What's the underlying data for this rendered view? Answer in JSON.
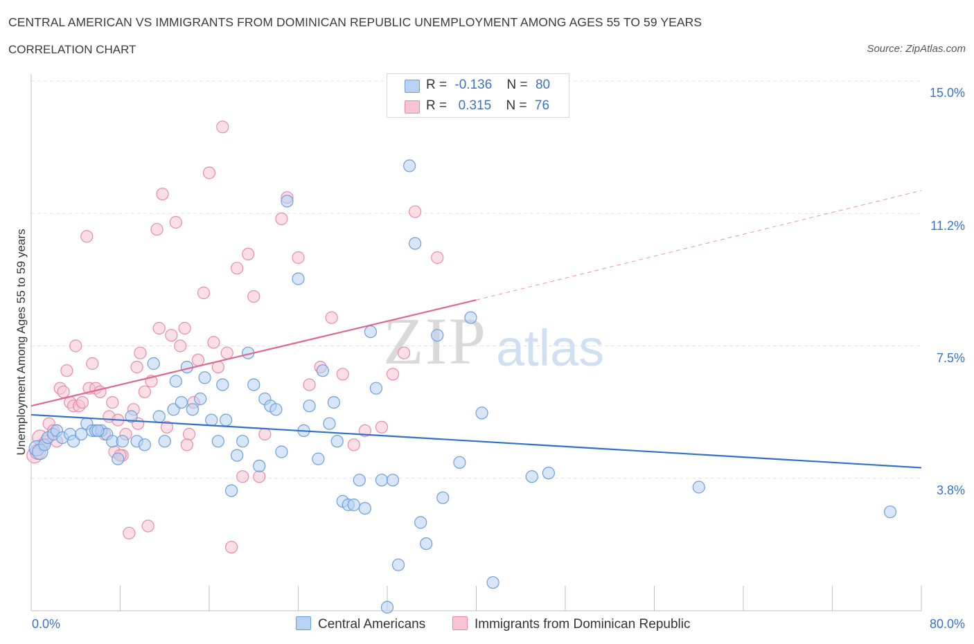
{
  "header": {
    "title": "CENTRAL AMERICAN VS IMMIGRANTS FROM DOMINICAN REPUBLIC UNEMPLOYMENT AMONG AGES 55 TO 59 YEARS",
    "subtitle": "CORRELATION CHART",
    "source": "Source: ZipAtlas.com"
  },
  "legend": {
    "r_label": "R =",
    "n_label": "N =",
    "rows": [
      {
        "r": "-0.136",
        "n": "80",
        "color": "#a8c8f0"
      },
      {
        "r": " 0.315",
        "n": "76",
        "color": "#f5b8cb"
      }
    ]
  },
  "watermark": {
    "zip": "ZIP",
    "atlas": "atlas"
  },
  "chart_data": {
    "type": "scatter",
    "xlabel": "",
    "ylabel": "Unemployment Among Ages 55 to 59 years",
    "x_tick_labels": [
      "0.0%",
      "80.0%"
    ],
    "y_tick_labels": [
      "3.8%",
      "7.5%",
      "11.2%",
      "15.0%"
    ],
    "xlim": [
      0,
      80
    ],
    "ylim": [
      0,
      15
    ],
    "grid": true,
    "legend_position": "bottom",
    "series": [
      {
        "name": "Central Americans",
        "color": "#6a9fdc",
        "fill": "#b7d2f3",
        "trend": {
          "x": [
            0,
            80
          ],
          "y": [
            5.55,
            4.05
          ],
          "color": "#3070c8"
        },
        "points": [
          [
            0.5,
            4.6
          ],
          [
            0.8,
            4.5
          ],
          [
            1.2,
            4.7
          ],
          [
            1.5,
            4.9
          ],
          [
            2.0,
            5.0
          ],
          [
            2.3,
            5.1
          ],
          [
            2.8,
            4.9
          ],
          [
            3.5,
            5.0
          ],
          [
            3.8,
            4.8
          ],
          [
            4.5,
            5.0
          ],
          [
            5.0,
            5.3
          ],
          [
            5.5,
            5.1
          ],
          [
            5.8,
            5.1
          ],
          [
            6.3,
            5.1
          ],
          [
            6.8,
            5.0
          ],
          [
            7.3,
            4.8
          ],
          [
            7.8,
            4.3
          ],
          [
            8.2,
            4.8
          ],
          [
            9.0,
            5.5
          ],
          [
            9.5,
            4.8
          ],
          [
            10.2,
            4.7
          ],
          [
            11.0,
            7.0
          ],
          [
            11.5,
            5.5
          ],
          [
            12.0,
            4.8
          ],
          [
            12.8,
            5.7
          ],
          [
            13.0,
            6.5
          ],
          [
            13.5,
            5.9
          ],
          [
            14.0,
            6.9
          ],
          [
            14.5,
            5.7
          ],
          [
            15.2,
            6.0
          ],
          [
            15.6,
            6.6
          ],
          [
            16.2,
            5.4
          ],
          [
            16.8,
            4.8
          ],
          [
            17.2,
            6.4
          ],
          [
            17.5,
            5.4
          ],
          [
            18.0,
            3.4
          ],
          [
            18.5,
            4.4
          ],
          [
            19.0,
            4.8
          ],
          [
            19.5,
            7.3
          ],
          [
            20.0,
            6.4
          ],
          [
            20.5,
            4.1
          ],
          [
            21.0,
            6.0
          ],
          [
            21.5,
            5.8
          ],
          [
            22.0,
            5.7
          ],
          [
            22.5,
            4.5
          ],
          [
            23.0,
            11.6
          ],
          [
            24.0,
            9.4
          ],
          [
            24.5,
            5.1
          ],
          [
            25.0,
            5.8
          ],
          [
            25.8,
            4.3
          ],
          [
            26.2,
            6.8
          ],
          [
            26.8,
            5.3
          ],
          [
            27.2,
            5.9
          ],
          [
            27.5,
            4.8
          ],
          [
            28.0,
            3.1
          ],
          [
            28.5,
            3.0
          ],
          [
            29.0,
            3.0
          ],
          [
            29.5,
            3.7
          ],
          [
            30.0,
            2.9
          ],
          [
            30.5,
            7.9
          ],
          [
            31.0,
            6.3
          ],
          [
            31.5,
            3.7
          ],
          [
            32.0,
            0.1
          ],
          [
            32.5,
            3.7
          ],
          [
            33.0,
            1.3
          ],
          [
            34.0,
            12.6
          ],
          [
            34.5,
            10.4
          ],
          [
            35.0,
            2.5
          ],
          [
            35.5,
            1.9
          ],
          [
            36.5,
            7.8
          ],
          [
            37.0,
            3.2
          ],
          [
            38.5,
            4.2
          ],
          [
            39.5,
            8.3
          ],
          [
            40.5,
            5.6
          ],
          [
            41.5,
            0.8
          ],
          [
            45.0,
            3.8
          ],
          [
            46.5,
            3.9
          ],
          [
            60.0,
            3.5
          ],
          [
            77.2,
            2.8
          ],
          [
            6.0,
            5.1
          ]
        ]
      },
      {
        "name": "Immigrants from Dominican Republic",
        "color": "#e98aa8",
        "fill": "#f7c4d3",
        "trend": {
          "x": [
            0,
            40
          ],
          "y": [
            5.8,
            8.8
          ],
          "color": "#e06890"
        },
        "trend_extension": {
          "x": [
            40,
            80
          ],
          "y": [
            8.8,
            11.9
          ]
        },
        "points": [
          [
            0.3,
            4.4
          ],
          [
            0.6,
            4.5
          ],
          [
            0.8,
            4.9
          ],
          [
            1.0,
            4.7
          ],
          [
            1.3,
            4.8
          ],
          [
            1.6,
            5.3
          ],
          [
            2.0,
            5.1
          ],
          [
            2.3,
            4.8
          ],
          [
            2.6,
            6.3
          ],
          [
            2.9,
            6.2
          ],
          [
            3.2,
            6.8
          ],
          [
            3.5,
            5.9
          ],
          [
            3.8,
            5.8
          ],
          [
            4.0,
            7.5
          ],
          [
            4.3,
            5.8
          ],
          [
            4.6,
            5.9
          ],
          [
            5.0,
            10.6
          ],
          [
            5.2,
            6.3
          ],
          [
            5.5,
            7.0
          ],
          [
            5.8,
            6.3
          ],
          [
            6.2,
            6.2
          ],
          [
            6.6,
            5.0
          ],
          [
            7.0,
            5.5
          ],
          [
            7.3,
            5.9
          ],
          [
            7.5,
            4.5
          ],
          [
            7.8,
            5.4
          ],
          [
            8.2,
            4.4
          ],
          [
            8.5,
            5.0
          ],
          [
            8.8,
            2.2
          ],
          [
            9.2,
            5.7
          ],
          [
            9.5,
            6.9
          ],
          [
            9.8,
            7.3
          ],
          [
            10.2,
            6.2
          ],
          [
            10.5,
            2.4
          ],
          [
            10.8,
            6.5
          ],
          [
            11.3,
            10.8
          ],
          [
            11.5,
            8.0
          ],
          [
            11.8,
            11.8
          ],
          [
            12.2,
            5.2
          ],
          [
            12.6,
            7.8
          ],
          [
            13.0,
            11.0
          ],
          [
            13.4,
            7.5
          ],
          [
            13.8,
            8.0
          ],
          [
            14.2,
            5.0
          ],
          [
            14.6,
            5.9
          ],
          [
            15.0,
            7.1
          ],
          [
            15.5,
            9.0
          ],
          [
            16.0,
            12.4
          ],
          [
            16.4,
            7.6
          ],
          [
            16.8,
            6.9
          ],
          [
            17.2,
            13.7
          ],
          [
            17.6,
            7.3
          ],
          [
            18.0,
            1.8
          ],
          [
            18.5,
            9.7
          ],
          [
            19.0,
            3.8
          ],
          [
            19.5,
            10.1
          ],
          [
            20.0,
            8.9
          ],
          [
            20.5,
            3.8
          ],
          [
            21.0,
            5.0
          ],
          [
            22.5,
            11.1
          ],
          [
            23.0,
            11.7
          ],
          [
            24.0,
            10.0
          ],
          [
            25.0,
            6.4
          ],
          [
            26.0,
            6.9
          ],
          [
            27.0,
            8.3
          ],
          [
            28.0,
            6.7
          ],
          [
            29.0,
            4.7
          ],
          [
            30.0,
            5.1
          ],
          [
            31.5,
            5.2
          ],
          [
            32.5,
            6.7
          ],
          [
            33.5,
            7.3
          ],
          [
            34.5,
            11.3
          ],
          [
            36.5,
            10.0
          ],
          [
            14.0,
            4.7
          ],
          [
            8.0,
            4.4
          ],
          [
            9.6,
            5.3
          ]
        ]
      }
    ]
  }
}
